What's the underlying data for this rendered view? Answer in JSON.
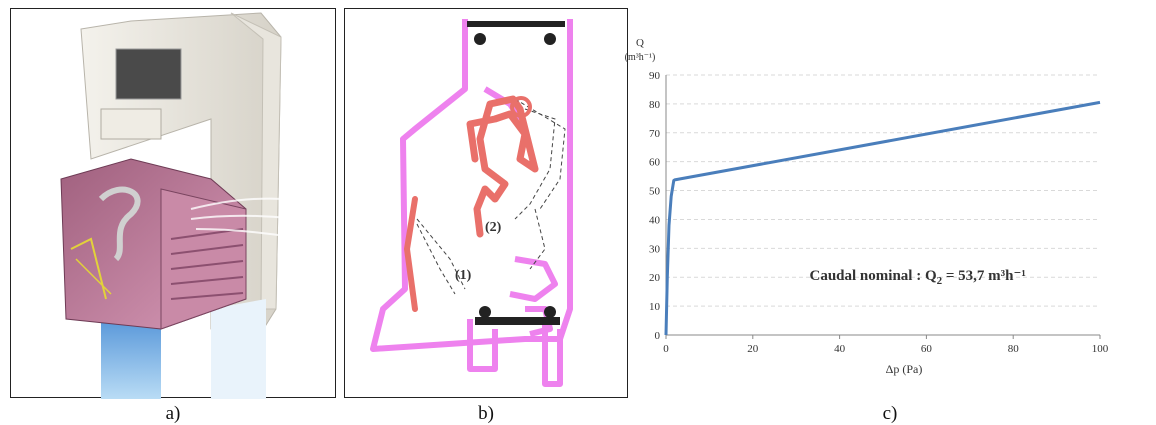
{
  "captions": {
    "a": "a)",
    "b": "b)",
    "c": "c)"
  },
  "diagram_b": {
    "label1": "(1)",
    "label2": "(2)"
  },
  "colors": {
    "profile_pink": "#ee82ee",
    "flap_red": "#e9706a",
    "line_blue": "#4a7ebb",
    "grid": "#d9d9d9"
  },
  "chart_data": {
    "type": "line",
    "xlabel": "Δp (Pa)",
    "ylabel": "Q",
    "ylabel_unit": "(m³h⁻¹)",
    "xlim": [
      0,
      100
    ],
    "ylim": [
      0,
      90
    ],
    "xticks": [
      0,
      20,
      40,
      60,
      80,
      100
    ],
    "yticks": [
      0,
      10,
      20,
      30,
      40,
      50,
      60,
      70,
      80,
      90
    ],
    "grid": "horizontal dashed",
    "series": [
      {
        "x": [
          0,
          0.3,
          0.7,
          1.2,
          1.8,
          2.0,
          100
        ],
        "y": [
          0,
          20,
          38,
          48,
          53.5,
          53.7,
          80.5
        ]
      }
    ],
    "annotation": {
      "prefix": "Caudal nominal : Q",
      "subscript": "2",
      "suffix": " = 53,7 m³h⁻¹",
      "at": [
        58,
        19
      ]
    }
  }
}
